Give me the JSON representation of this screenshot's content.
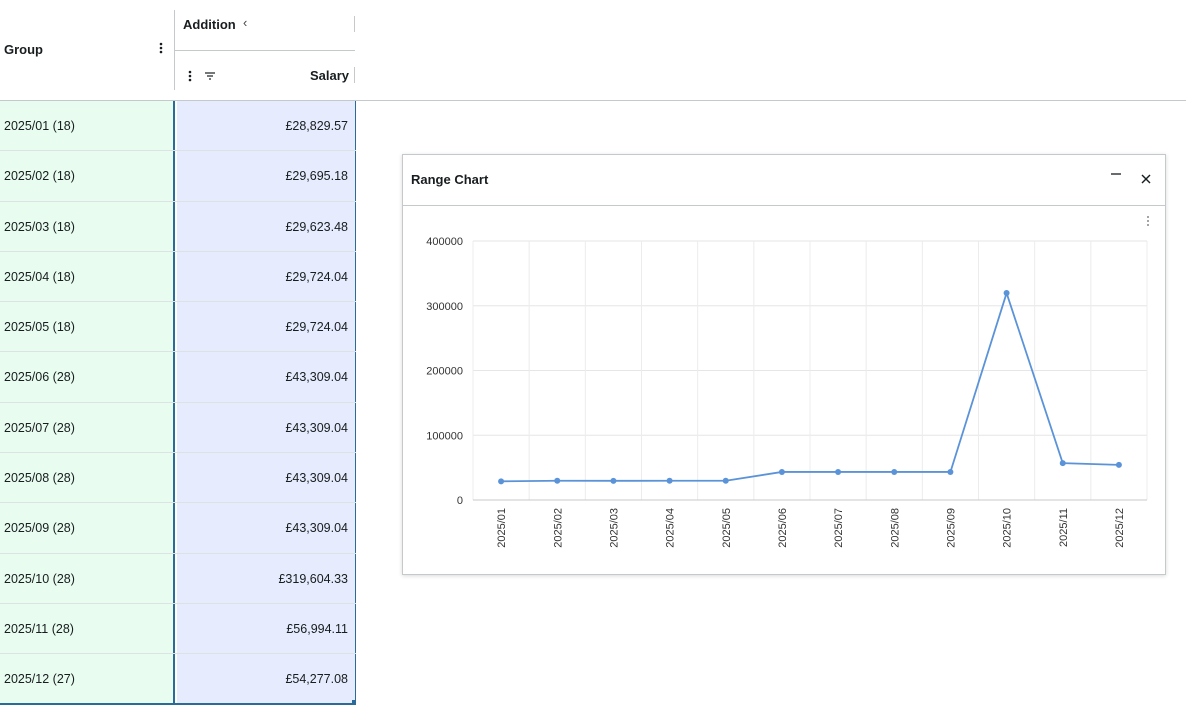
{
  "header": {
    "group_label": "Group",
    "addition_label": "Addition",
    "salary_label": "Salary"
  },
  "rows": [
    {
      "group": "2025/01 (18)",
      "salary": "£28,829.57"
    },
    {
      "group": "2025/02 (18)",
      "salary": "£29,695.18"
    },
    {
      "group": "2025/03 (18)",
      "salary": "£29,623.48"
    },
    {
      "group": "2025/04 (18)",
      "salary": "£29,724.04"
    },
    {
      "group": "2025/05 (18)",
      "salary": "£29,724.04"
    },
    {
      "group": "2025/06 (28)",
      "salary": "£43,309.04"
    },
    {
      "group": "2025/07 (28)",
      "salary": "£43,309.04"
    },
    {
      "group": "2025/08 (28)",
      "salary": "£43,309.04"
    },
    {
      "group": "2025/09 (28)",
      "salary": "£43,309.04"
    },
    {
      "group": "2025/10 (28)",
      "salary": "£319,604.33"
    },
    {
      "group": "2025/11 (28)",
      "salary": "£56,994.11"
    },
    {
      "group": "2025/12 (27)",
      "salary": "£54,277.08"
    }
  ],
  "chart_panel": {
    "title": "Range Chart"
  },
  "chart_data": {
    "type": "line",
    "categories": [
      "2025/01",
      "2025/02",
      "2025/03",
      "2025/04",
      "2025/05",
      "2025/06",
      "2025/07",
      "2025/08",
      "2025/09",
      "2025/10",
      "2025/11",
      "2025/12"
    ],
    "series": [
      {
        "values": [
          28829.57,
          29695.18,
          29623.48,
          29724.04,
          29724.04,
          43309.04,
          43309.04,
          43309.04,
          43309.04,
          319604.33,
          56994.11,
          54277.08
        ]
      }
    ],
    "ylim": [
      0,
      400000
    ],
    "yticks": [
      "0",
      "100000",
      "200000",
      "300000",
      "400000"
    ],
    "grid": true,
    "line_color": "#5b93d9"
  }
}
